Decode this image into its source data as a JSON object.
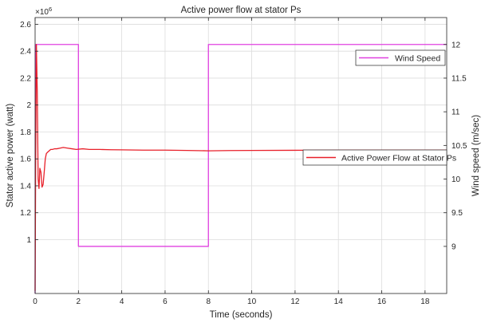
{
  "chart_data": {
    "type": "line",
    "title": "Active power flow at stator Ps",
    "xlabel": "Time (seconds)",
    "ylabel_left": "Stator active power (watt)",
    "ylabel_right": "Wind speed (m/sec)",
    "exponent_label": "×10⁶",
    "exponent_base": "×10",
    "exponent_power": "6",
    "xlim": [
      0,
      19
    ],
    "ylim_left": [
      0.6,
      2.65
    ],
    "ylim_right": [
      8.3,
      12.4
    ],
    "x_ticks": [
      0,
      2,
      4,
      6,
      8,
      10,
      12,
      14,
      16,
      18
    ],
    "x_tick_labels": [
      "0",
      "2",
      "4",
      "6",
      "8",
      "10",
      "12",
      "14",
      "16",
      "18"
    ],
    "y_left_ticks": [
      1,
      1.2,
      1.4,
      1.6,
      1.8,
      2,
      2.2,
      2.4,
      2.6
    ],
    "y_left_tick_labels": [
      "1",
      "1.2",
      "1.4",
      "1.6",
      "1.8",
      "2",
      "2.2",
      "2.4",
      "2.6"
    ],
    "y_right_ticks": [
      9,
      9.5,
      10,
      10.5,
      11,
      11.5,
      12
    ],
    "y_right_tick_labels": [
      "9",
      "9.5",
      "10",
      "10.5",
      "11",
      "11.5",
      "12"
    ],
    "grid": true,
    "series": [
      {
        "name": "Wind Speed",
        "axis": "right",
        "color": "#e040e0",
        "x": [
          0,
          0.02,
          2,
          2,
          8,
          8,
          19
        ],
        "y": [
          8.3,
          12,
          12,
          9,
          9,
          12,
          12
        ]
      },
      {
        "name": "Active Power Flow at Stator Ps",
        "axis": "left",
        "color": "#e8202a",
        "x": [
          0,
          0.03,
          0.06,
          0.1,
          0.14,
          0.18,
          0.22,
          0.27,
          0.32,
          0.37,
          0.42,
          0.47,
          0.52,
          0.58,
          0.65,
          0.72,
          0.8,
          0.9,
          1.0,
          1.15,
          1.3,
          1.5,
          1.7,
          1.9,
          2.2,
          2.5,
          3.0,
          3.5,
          4.0,
          5.0,
          6.0,
          7.0,
          8.0,
          9.0,
          10.0,
          12.0,
          14.0,
          16.0,
          18.0,
          19.0
        ],
        "y": [
          0.62,
          1.7,
          2.45,
          2.1,
          1.45,
          1.38,
          1.53,
          1.5,
          1.39,
          1.41,
          1.5,
          1.6,
          1.64,
          1.65,
          1.66,
          1.67,
          1.67,
          1.675,
          1.675,
          1.68,
          1.685,
          1.68,
          1.675,
          1.67,
          1.675,
          1.67,
          1.67,
          1.668,
          1.667,
          1.665,
          1.665,
          1.663,
          1.66,
          1.662,
          1.663,
          1.664,
          1.665,
          1.665,
          1.665,
          1.665
        ]
      }
    ],
    "legends": [
      {
        "label": "Wind Speed",
        "series": 0,
        "placement": "top-right"
      },
      {
        "label": "Active Power Flow at Stator Ps",
        "series": 1,
        "placement": "middle-right"
      }
    ]
  }
}
